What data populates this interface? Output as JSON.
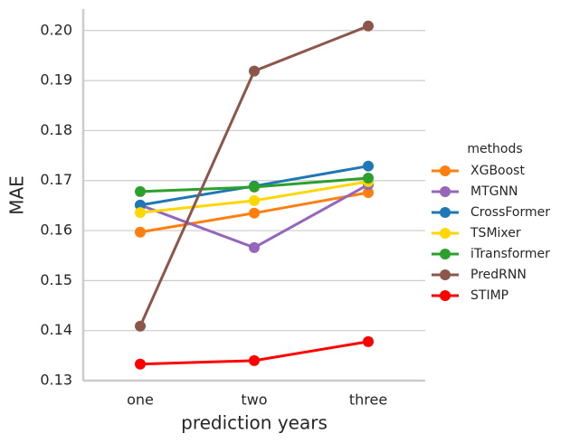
{
  "chart_data": {
    "type": "line",
    "xlabel": "prediction years",
    "ylabel": "MAE",
    "categories": [
      "one",
      "two",
      "three"
    ],
    "legend_title": "methods",
    "series": [
      {
        "name": "XGBoost",
        "color": "#ff7f0e",
        "values": [
          0.1597,
          0.1635,
          0.1676
        ]
      },
      {
        "name": "MTGNN",
        "color": "#9467bd",
        "values": [
          0.1651,
          0.1566,
          0.1692
        ]
      },
      {
        "name": "CrossFormer",
        "color": "#1f77b4",
        "values": [
          0.1651,
          0.1689,
          0.1729
        ]
      },
      {
        "name": "TSMixer",
        "color": "#ffd700",
        "values": [
          0.1636,
          0.166,
          0.1698
        ]
      },
      {
        "name": "iTransformer",
        "color": "#2ca02c",
        "values": [
          0.1678,
          0.1687,
          0.1705
        ]
      },
      {
        "name": "PredRNN",
        "color": "#8c564b",
        "values": [
          0.1409,
          0.1919,
          0.2009
        ]
      },
      {
        "name": "STIMP",
        "color": "#ff0000",
        "values": [
          0.1333,
          0.134,
          0.1378
        ]
      }
    ],
    "ylim": [
      0.13,
      0.2043
    ],
    "yticks": [
      {
        "value": 0.13,
        "label": "0.13"
      },
      {
        "value": 0.14,
        "label": "0.14"
      },
      {
        "value": 0.15,
        "label": "0.15"
      },
      {
        "value": 0.16,
        "label": "0.16"
      },
      {
        "value": 0.17,
        "label": "0.17"
      },
      {
        "value": 0.18,
        "label": "0.18"
      },
      {
        "value": 0.19,
        "label": "0.19"
      },
      {
        "value": 0.2,
        "label": "0.20"
      }
    ],
    "grid": true
  }
}
